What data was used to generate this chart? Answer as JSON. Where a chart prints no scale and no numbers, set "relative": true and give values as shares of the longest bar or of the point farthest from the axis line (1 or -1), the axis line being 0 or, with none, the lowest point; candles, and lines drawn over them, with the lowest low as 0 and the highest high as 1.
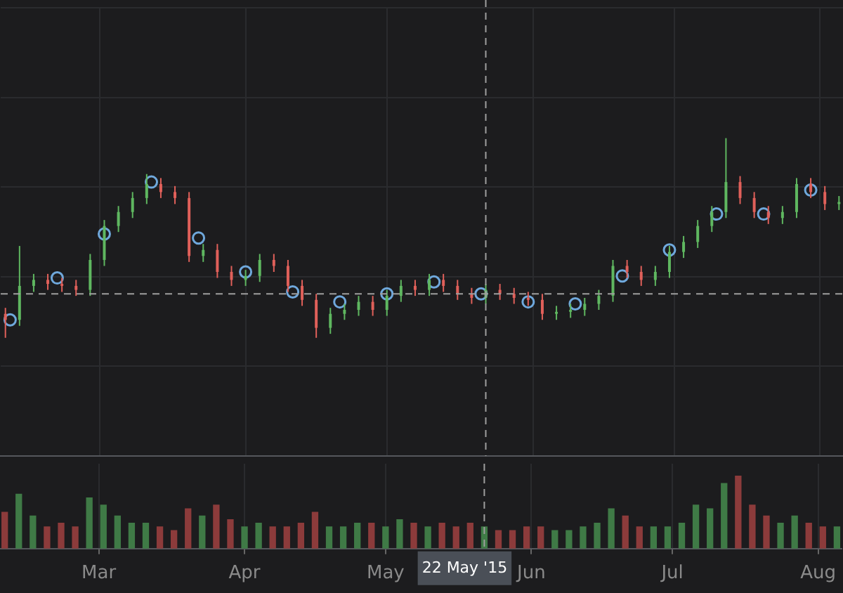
{
  "chart_data": [
    {
      "type": "candlestick",
      "relative": true,
      "grid": true,
      "tick_labels": false,
      "x": [
        "2015-02-09",
        "2015-02-12",
        "2015-02-15",
        "2015-02-18",
        "2015-02-21",
        "2015-02-24",
        "2015-02-27",
        "2015-03-02",
        "2015-03-05",
        "2015-03-08",
        "2015-03-11",
        "2015-03-14",
        "2015-03-17",
        "2015-03-20",
        "2015-03-23",
        "2015-03-26",
        "2015-03-29",
        "2015-04-01",
        "2015-04-04",
        "2015-04-07",
        "2015-04-10",
        "2015-04-13",
        "2015-04-16",
        "2015-04-19",
        "2015-04-22",
        "2015-04-25",
        "2015-04-28",
        "2015-05-01",
        "2015-05-04",
        "2015-05-07",
        "2015-05-10",
        "2015-05-13",
        "2015-05-16",
        "2015-05-19",
        "2015-05-22",
        "2015-05-25",
        "2015-05-28",
        "2015-05-31",
        "2015-06-03",
        "2015-06-06",
        "2015-06-09",
        "2015-06-12",
        "2015-06-15",
        "2015-06-18",
        "2015-06-21",
        "2015-06-24",
        "2015-06-27",
        "2015-06-30",
        "2015-07-03",
        "2015-07-06",
        "2015-07-09",
        "2015-07-12",
        "2015-07-15",
        "2015-07-18",
        "2015-07-21",
        "2015-07-24",
        "2015-07-27",
        "2015-07-30",
        "2015-08-02",
        "2015-08-05"
      ],
      "xlim": [
        "2015-02-08",
        "2015-08-06"
      ],
      "ohlc": [
        [
          0.12,
          0.15,
          0.0,
          0.09
        ],
        [
          0.09,
          0.46,
          0.06,
          0.26
        ],
        [
          0.26,
          0.32,
          0.23,
          0.29
        ],
        [
          0.29,
          0.32,
          0.24,
          0.27
        ],
        [
          0.27,
          0.3,
          0.23,
          0.26
        ],
        [
          0.26,
          0.29,
          0.21,
          0.24
        ],
        [
          0.24,
          0.42,
          0.21,
          0.39
        ],
        [
          0.39,
          0.59,
          0.36,
          0.56
        ],
        [
          0.56,
          0.66,
          0.53,
          0.63
        ],
        [
          0.63,
          0.73,
          0.6,
          0.7
        ],
        [
          0.7,
          0.82,
          0.67,
          0.77
        ],
        [
          0.77,
          0.8,
          0.7,
          0.73
        ],
        [
          0.73,
          0.76,
          0.67,
          0.7
        ],
        [
          0.7,
          0.73,
          0.38,
          0.41
        ],
        [
          0.41,
          0.47,
          0.38,
          0.44
        ],
        [
          0.44,
          0.47,
          0.3,
          0.33
        ],
        [
          0.33,
          0.36,
          0.26,
          0.29
        ],
        [
          0.29,
          0.34,
          0.26,
          0.31
        ],
        [
          0.31,
          0.42,
          0.28,
          0.39
        ],
        [
          0.39,
          0.42,
          0.33,
          0.36
        ],
        [
          0.36,
          0.39,
          0.23,
          0.26
        ],
        [
          0.26,
          0.29,
          0.16,
          0.19
        ],
        [
          0.19,
          0.22,
          0.0,
          0.05
        ],
        [
          0.05,
          0.15,
          0.02,
          0.12
        ],
        [
          0.12,
          0.17,
          0.09,
          0.14
        ],
        [
          0.14,
          0.21,
          0.11,
          0.18
        ],
        [
          0.18,
          0.21,
          0.11,
          0.14
        ],
        [
          0.14,
          0.24,
          0.11,
          0.21
        ],
        [
          0.21,
          0.29,
          0.18,
          0.26
        ],
        [
          0.26,
          0.29,
          0.21,
          0.24
        ],
        [
          0.24,
          0.32,
          0.21,
          0.29
        ],
        [
          0.29,
          0.32,
          0.23,
          0.26
        ],
        [
          0.26,
          0.29,
          0.19,
          0.22
        ],
        [
          0.22,
          0.25,
          0.17,
          0.2
        ],
        [
          0.2,
          0.27,
          0.17,
          0.24
        ],
        [
          0.24,
          0.27,
          0.19,
          0.22
        ],
        [
          0.22,
          0.25,
          0.17,
          0.2
        ],
        [
          0.2,
          0.23,
          0.16,
          0.19
        ],
        [
          0.19,
          0.22,
          0.09,
          0.12
        ],
        [
          0.12,
          0.16,
          0.09,
          0.13
        ],
        [
          0.13,
          0.17,
          0.1,
          0.14
        ],
        [
          0.14,
          0.2,
          0.11,
          0.17
        ],
        [
          0.17,
          0.24,
          0.14,
          0.21
        ],
        [
          0.21,
          0.39,
          0.18,
          0.36
        ],
        [
          0.36,
          0.39,
          0.3,
          0.33
        ],
        [
          0.33,
          0.36,
          0.26,
          0.29
        ],
        [
          0.29,
          0.36,
          0.26,
          0.33
        ],
        [
          0.33,
          0.46,
          0.3,
          0.43
        ],
        [
          0.43,
          0.51,
          0.4,
          0.48
        ],
        [
          0.48,
          0.59,
          0.45,
          0.56
        ],
        [
          0.56,
          0.66,
          0.53,
          0.63
        ],
        [
          0.63,
          1.0,
          0.6,
          0.78
        ],
        [
          0.78,
          0.81,
          0.67,
          0.7
        ],
        [
          0.7,
          0.73,
          0.6,
          0.63
        ],
        [
          0.63,
          0.66,
          0.57,
          0.6
        ],
        [
          0.6,
          0.66,
          0.57,
          0.63
        ],
        [
          0.63,
          0.8,
          0.6,
          0.77
        ],
        [
          0.77,
          0.8,
          0.7,
          0.73
        ],
        [
          0.73,
          0.76,
          0.64,
          0.67
        ],
        [
          0.67,
          0.71,
          0.64,
          0.68
        ]
      ],
      "colors": [
        "#e0605a",
        "#5fb760",
        "#5fb760",
        "#e0605a",
        "#e0605a",
        "#e0605a",
        "#5fb760",
        "#5fb760",
        "#5fb760",
        "#5fb760",
        "#5fb760",
        "#e0605a",
        "#e0605a",
        "#e0605a",
        "#5fb760",
        "#e0605a",
        "#e0605a",
        "#5fb760",
        "#5fb760",
        "#e0605a",
        "#e0605a",
        "#e0605a",
        "#e0605a",
        "#5fb760",
        "#5fb760",
        "#5fb760",
        "#e0605a",
        "#5fb760",
        "#5fb760",
        "#e0605a",
        "#5fb760",
        "#e0605a",
        "#e0605a",
        "#e0605a",
        "#5fb760",
        "#e0605a",
        "#e0605a",
        "#e0605a",
        "#e0605a",
        "#5fb760",
        "#5fb760",
        "#5fb760",
        "#5fb760",
        "#5fb760",
        "#e0605a",
        "#e0605a",
        "#5fb760",
        "#5fb760",
        "#5fb760",
        "#5fb760",
        "#5fb760",
        "#5fb760",
        "#e0605a",
        "#e0605a",
        "#e0605a",
        "#5fb760",
        "#5fb760",
        "#e0605a",
        "#e0605a",
        "#5fb760"
      ],
      "series": [
        {
          "type": "scatter",
          "marker": "circle",
          "color": "#6fa8dc",
          "x": [
            "2015-02-10",
            "2015-02-20",
            "2015-03-02",
            "2015-03-12",
            "2015-03-22",
            "2015-04-01",
            "2015-04-11",
            "2015-04-21",
            "2015-05-01",
            "2015-05-11",
            "2015-05-21",
            "2015-05-31",
            "2015-06-10",
            "2015-06-20",
            "2015-06-30",
            "2015-07-10",
            "2015-07-20",
            "2015-07-30"
          ],
          "values": [
            0.09,
            0.3,
            0.52,
            0.78,
            0.5,
            0.33,
            0.23,
            0.18,
            0.22,
            0.28,
            0.22,
            0.18,
            0.17,
            0.31,
            0.44,
            0.62,
            0.62,
            0.74
          ]
        }
      ],
      "ref_lines": [
        {
          "axis": "x",
          "value": "2015-05-22",
          "color": "#9e9e9e",
          "line_style": "dashed"
        },
        {
          "axis": "y",
          "value": 0.22,
          "color": "#9e9e9e",
          "line_style": "dashed"
        }
      ]
    },
    {
      "type": "bar",
      "relative": true,
      "grid": "x",
      "tick_labels": "x",
      "x": [
        "2015-02-09",
        "2015-02-12",
        "2015-02-15",
        "2015-02-18",
        "2015-02-21",
        "2015-02-24",
        "2015-02-27",
        "2015-03-02",
        "2015-03-05",
        "2015-03-08",
        "2015-03-11",
        "2015-03-14",
        "2015-03-17",
        "2015-03-20",
        "2015-03-23",
        "2015-03-26",
        "2015-03-29",
        "2015-04-01",
        "2015-04-04",
        "2015-04-07",
        "2015-04-10",
        "2015-04-13",
        "2015-04-16",
        "2015-04-19",
        "2015-04-22",
        "2015-04-25",
        "2015-04-28",
        "2015-05-01",
        "2015-05-04",
        "2015-05-07",
        "2015-05-10",
        "2015-05-13",
        "2015-05-16",
        "2015-05-19",
        "2015-05-22",
        "2015-05-25",
        "2015-05-28",
        "2015-05-31",
        "2015-06-03",
        "2015-06-06",
        "2015-06-09",
        "2015-06-12",
        "2015-06-15",
        "2015-06-18",
        "2015-06-21",
        "2015-06-24",
        "2015-06-27",
        "2015-06-30",
        "2015-07-03",
        "2015-07-06",
        "2015-07-09",
        "2015-07-12",
        "2015-07-15",
        "2015-07-18",
        "2015-07-21",
        "2015-07-24",
        "2015-07-27",
        "2015-07-30",
        "2015-08-02",
        "2015-08-05"
      ],
      "xlim": [
        "2015-02-08",
        "2015-08-06"
      ],
      "xticks": [
        {
          "value": "2015-03-01",
          "label": "Mar"
        },
        {
          "value": "2015-04-01",
          "label": "Apr"
        },
        {
          "value": "2015-05-01",
          "label": "May"
        },
        {
          "value": "2015-06-01",
          "label": "Jun"
        },
        {
          "value": "2015-07-01",
          "label": "Jul"
        },
        {
          "value": "2015-08-01",
          "label": "Aug"
        }
      ],
      "values": [
        0.5,
        0.75,
        0.45,
        0.3,
        0.35,
        0.3,
        0.7,
        0.6,
        0.45,
        0.35,
        0.35,
        0.3,
        0.25,
        0.55,
        0.45,
        0.6,
        0.4,
        0.3,
        0.35,
        0.3,
        0.3,
        0.35,
        0.5,
        0.3,
        0.3,
        0.35,
        0.35,
        0.3,
        0.4,
        0.35,
        0.3,
        0.35,
        0.3,
        0.35,
        0.3,
        0.25,
        0.25,
        0.3,
        0.3,
        0.25,
        0.25,
        0.3,
        0.35,
        0.55,
        0.45,
        0.3,
        0.3,
        0.3,
        0.35,
        0.6,
        0.55,
        0.9,
        1.0,
        0.6,
        0.45,
        0.35,
        0.45,
        0.35,
        0.3,
        0.3
      ],
      "colors": [
        "#8c3b3b",
        "#3f7a46",
        "#3f7a46",
        "#8c3b3b",
        "#8c3b3b",
        "#8c3b3b",
        "#3f7a46",
        "#3f7a46",
        "#3f7a46",
        "#3f7a46",
        "#3f7a46",
        "#8c3b3b",
        "#8c3b3b",
        "#8c3b3b",
        "#3f7a46",
        "#8c3b3b",
        "#8c3b3b",
        "#3f7a46",
        "#3f7a46",
        "#8c3b3b",
        "#8c3b3b",
        "#8c3b3b",
        "#8c3b3b",
        "#3f7a46",
        "#3f7a46",
        "#3f7a46",
        "#8c3b3b",
        "#3f7a46",
        "#3f7a46",
        "#8c3b3b",
        "#3f7a46",
        "#8c3b3b",
        "#8c3b3b",
        "#8c3b3b",
        "#3f7a46",
        "#8c3b3b",
        "#8c3b3b",
        "#8c3b3b",
        "#8c3b3b",
        "#3f7a46",
        "#3f7a46",
        "#3f7a46",
        "#3f7a46",
        "#3f7a46",
        "#8c3b3b",
        "#8c3b3b",
        "#3f7a46",
        "#3f7a46",
        "#3f7a46",
        "#3f7a46",
        "#3f7a46",
        "#3f7a46",
        "#8c3b3b",
        "#8c3b3b",
        "#8c3b3b",
        "#3f7a46",
        "#3f7a46",
        "#8c3b3b",
        "#8c3b3b",
        "#3f7a46"
      ],
      "ref_lines": [
        {
          "axis": "x",
          "value": "2015-05-22",
          "label": "22 May '15",
          "color": "#9e9e9e",
          "line_style": "dashed"
        }
      ]
    }
  ]
}
